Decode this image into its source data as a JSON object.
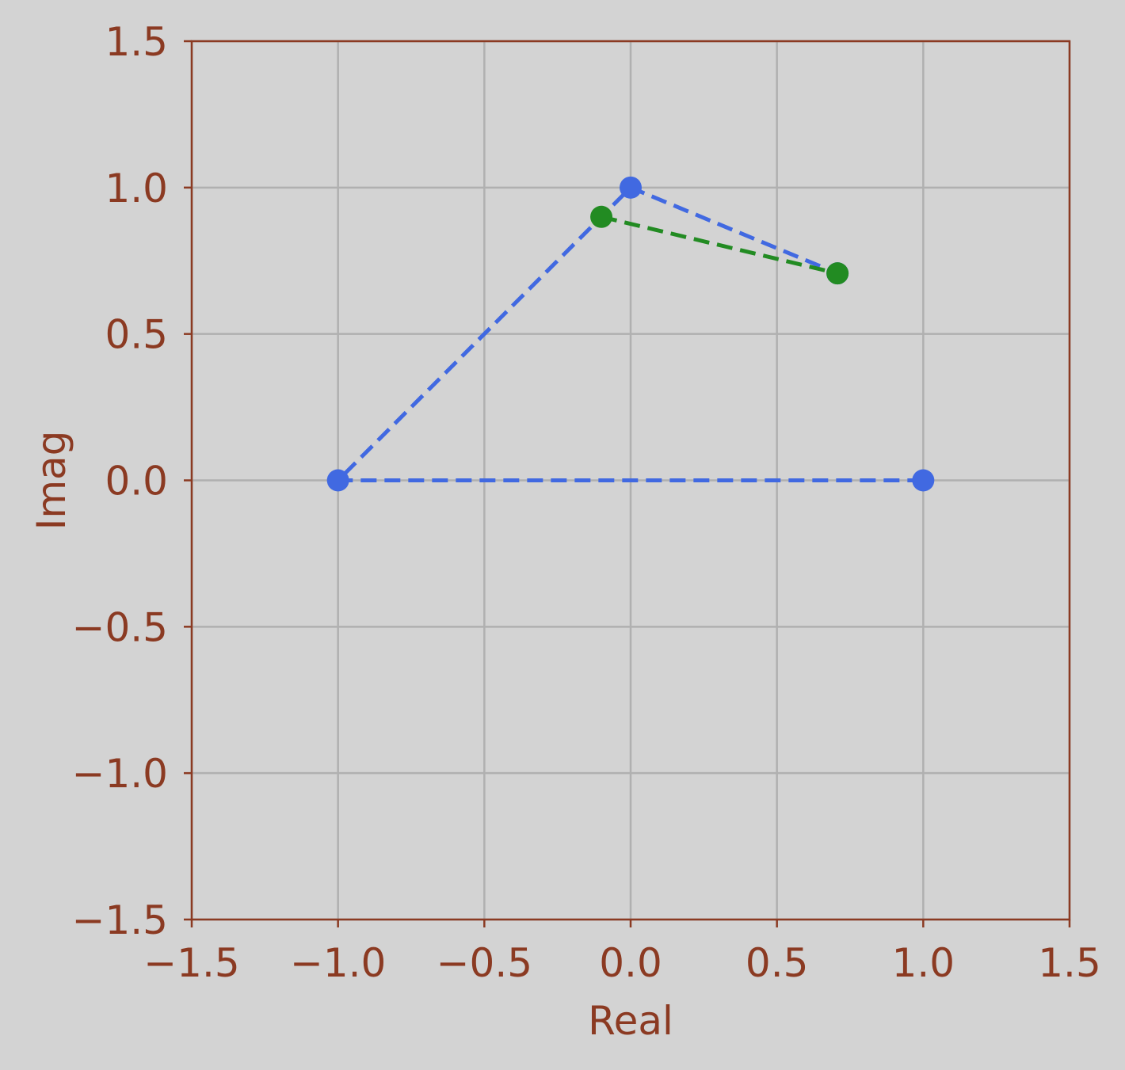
{
  "chart_data": {
    "type": "scatter",
    "title": "",
    "xlabel": "Real",
    "ylabel": "Imag",
    "xlim": [
      -1.5,
      1.5
    ],
    "ylim": [
      -1.5,
      1.5
    ],
    "grid": true,
    "xticks": [
      -1.5,
      -1.0,
      -0.5,
      0.0,
      0.5,
      1.0,
      1.5
    ],
    "yticks": [
      -1.5,
      -1.0,
      -0.5,
      0.0,
      0.5,
      1.0,
      1.5
    ],
    "xtick_labels": [
      "−1.5",
      "−1.0",
      "−0.5",
      "0.0",
      "0.5",
      "1.0",
      "1.5"
    ],
    "ytick_labels": [
      "−1.5",
      "−1.0",
      "−0.5",
      "0.0",
      "0.5",
      "1.0",
      "1.5"
    ],
    "series": [
      {
        "color": "#4169e1",
        "line_style": "dashed",
        "points": [
          {
            "x": 1.0,
            "y": 0.0
          },
          {
            "x": -1.0,
            "y": 0.0
          },
          {
            "x": 0.0,
            "y": 1.0
          },
          {
            "x": 0.707,
            "y": 0.707
          }
        ]
      },
      {
        "color": "#228b22",
        "line_style": "dashed",
        "points": [
          {
            "x": -0.1,
            "y": 0.9
          },
          {
            "x": 0.707,
            "y": 0.707
          }
        ]
      }
    ],
    "colors": {
      "background": "#d3d3d3",
      "axis": "#8b3a22",
      "grid": "#b0b0b0"
    }
  }
}
